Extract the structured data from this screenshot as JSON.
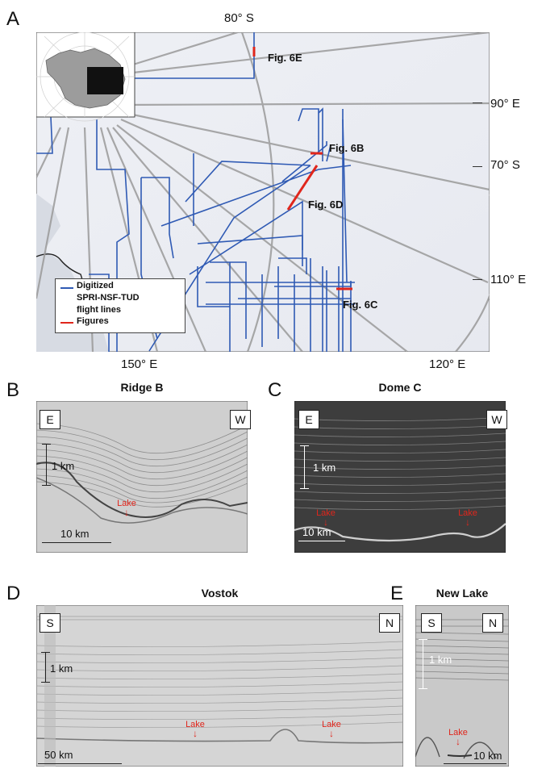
{
  "panel_a": {
    "letter": "A",
    "lat_labels": [
      "80° S",
      "70° S"
    ],
    "lon_labels": [
      "90° E",
      "110° E",
      "150° E",
      "120° E"
    ],
    "fig_labels": [
      "Fig. 6E",
      "Fig. 6B",
      "Fig. 6D",
      "Fig. 6C"
    ],
    "legend": {
      "line1": "Digitized",
      "line2": "SPRI-NSF-TUD",
      "line3": "flight lines",
      "line4": "Figures",
      "colors": {
        "flight_lines": "#2f5ab4",
        "figures": "#e0261c"
      }
    }
  },
  "panel_b": {
    "letter": "B",
    "title": "Ridge B",
    "dir_left": "E",
    "dir_right": "W",
    "vscale": "1 km",
    "hscale": "10 km",
    "lake": "Lake"
  },
  "panel_c": {
    "letter": "C",
    "title": "Dome C",
    "dir_left": "E",
    "dir_right": "W",
    "vscale": "1 km",
    "hscale": "10 km",
    "lake1": "Lake",
    "lake2": "Lake"
  },
  "panel_d": {
    "letter": "D",
    "title": "Vostok",
    "dir_left": "S",
    "dir_right": "N",
    "vscale": "1 km",
    "hscale": "50 km",
    "lake1": "Lake",
    "lake2": "Lake"
  },
  "panel_e": {
    "letter": "E",
    "title": "New Lake",
    "dir_left": "S",
    "dir_right": "N",
    "vscale": "1 km",
    "hscale": "10 km",
    "lake": "Lake"
  },
  "arrow_glyph": "↓"
}
